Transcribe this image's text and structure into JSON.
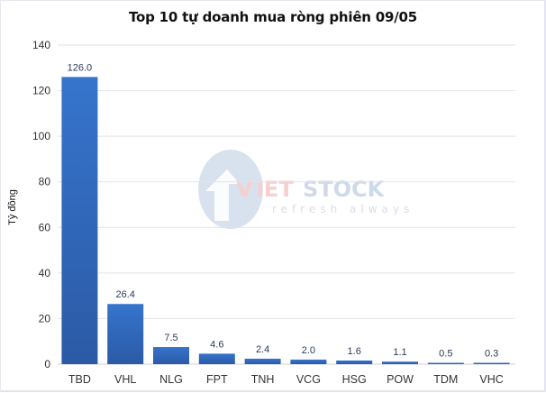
{
  "chart_data": {
    "type": "bar",
    "title": "Top 10 tự doanh mua ròng phiên 09/05",
    "xlabel": "",
    "ylabel": "Tỷ đồng",
    "categories": [
      "TBD",
      "VHL",
      "NLG",
      "FPT",
      "TNH",
      "VCG",
      "HSG",
      "POW",
      "TDM",
      "VHC"
    ],
    "values": [
      126.0,
      26.4,
      7.5,
      4.6,
      2.4,
      2.0,
      1.6,
      1.1,
      0.5,
      0.3
    ],
    "value_labels": [
      "126.0",
      "26.4",
      "7.5",
      "4.6",
      "2.4",
      "2.0",
      "1.6",
      "1.1",
      "0.5",
      "0.3"
    ],
    "ylim": [
      0,
      140
    ],
    "yticks": [
      0,
      20,
      40,
      60,
      80,
      100,
      120,
      140
    ],
    "grid": true,
    "legend": null,
    "bar_color": "#2f63b3"
  },
  "watermark": {
    "brand": "VIETSTOCK",
    "brand_prefix": "V",
    "brand_mid": "IET",
    "brand_suffix": "STOCK",
    "tagline": "refresh always"
  }
}
